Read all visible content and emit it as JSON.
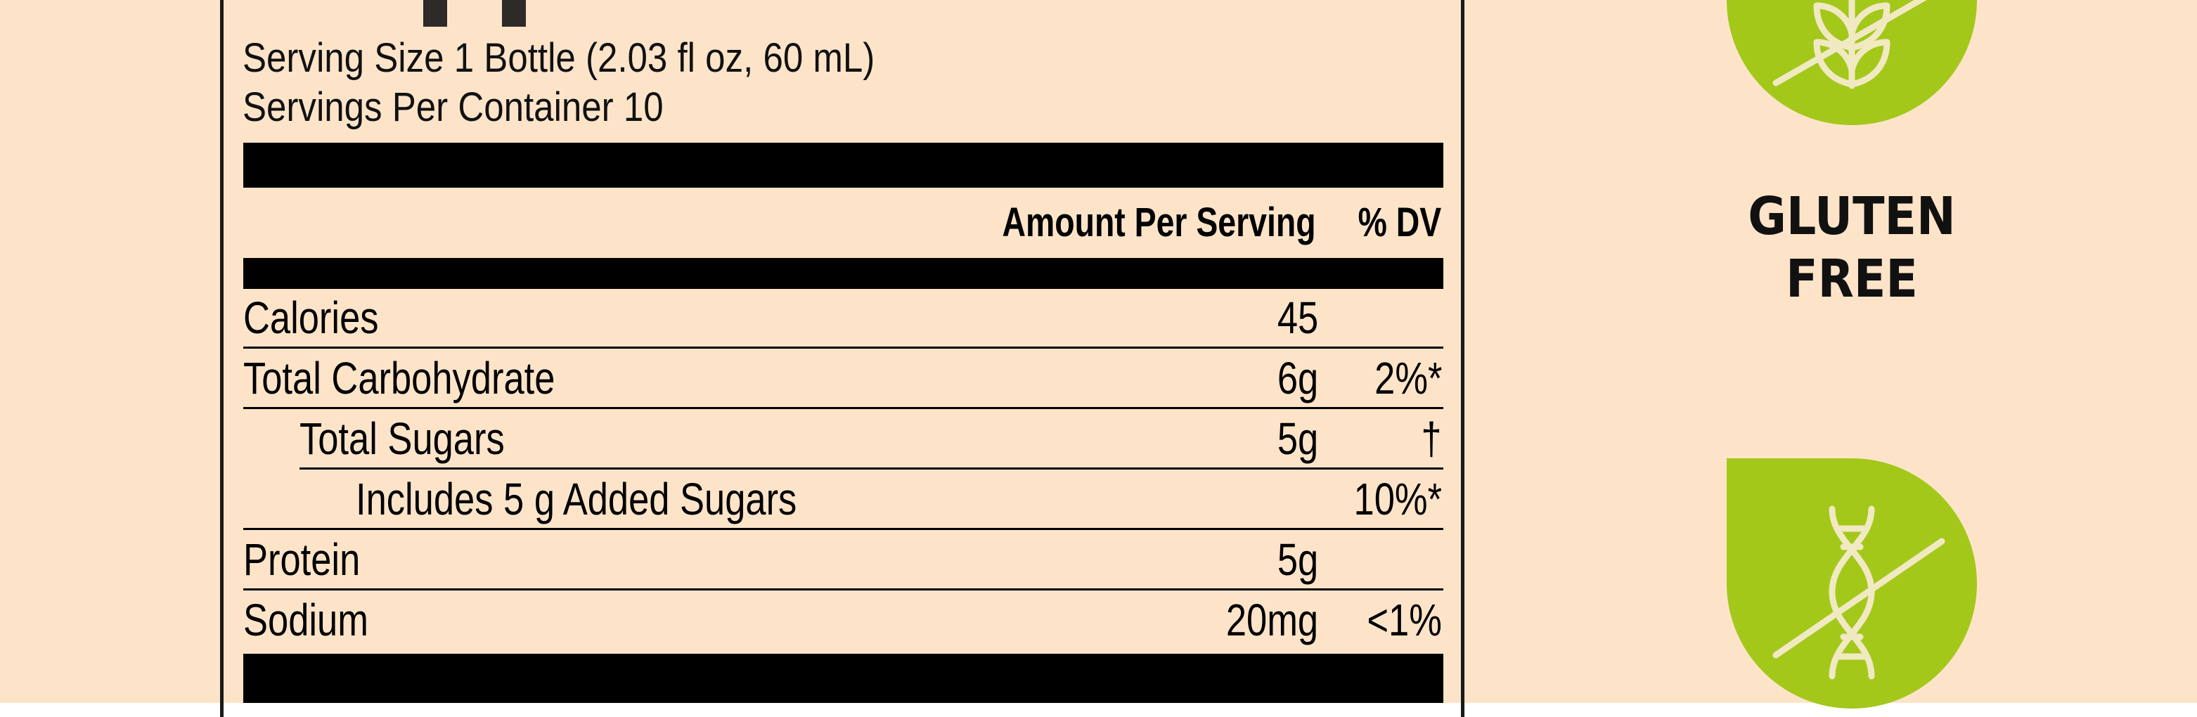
{
  "colors": {
    "background": "#fde4c9",
    "badge_green": "#a3c81a",
    "badge_icon": "#f1e9c2",
    "text": "#000000"
  },
  "nutrition": {
    "serving_size": "Serving Size 1 Bottle (2.03 fl oz, 60 mL)",
    "servings_per_container": "Servings Per Container 10",
    "header_amount": "Amount Per Serving",
    "header_dv": "% DV",
    "rows": [
      {
        "label": "Calories",
        "amount": "45",
        "dv": ""
      },
      {
        "label": "Total Carbohydrate",
        "amount": "6g",
        "dv": "2%*"
      },
      {
        "label": "Total Sugars",
        "amount": "5g",
        "dv": "†"
      },
      {
        "label": "Includes 5 g Added Sugars",
        "amount": "",
        "dv": "10%*"
      },
      {
        "label": "Protein",
        "amount": "5g",
        "dv": ""
      },
      {
        "label": "Sodium",
        "amount": "20mg",
        "dv": "<1%"
      }
    ]
  },
  "badges": {
    "gluten_free": {
      "icon": "wheat-crossed-icon",
      "caption_line1": "GLUTEN",
      "caption_line2": "FREE"
    },
    "non_gmo": {
      "icon": "dna-crossed-icon"
    }
  }
}
